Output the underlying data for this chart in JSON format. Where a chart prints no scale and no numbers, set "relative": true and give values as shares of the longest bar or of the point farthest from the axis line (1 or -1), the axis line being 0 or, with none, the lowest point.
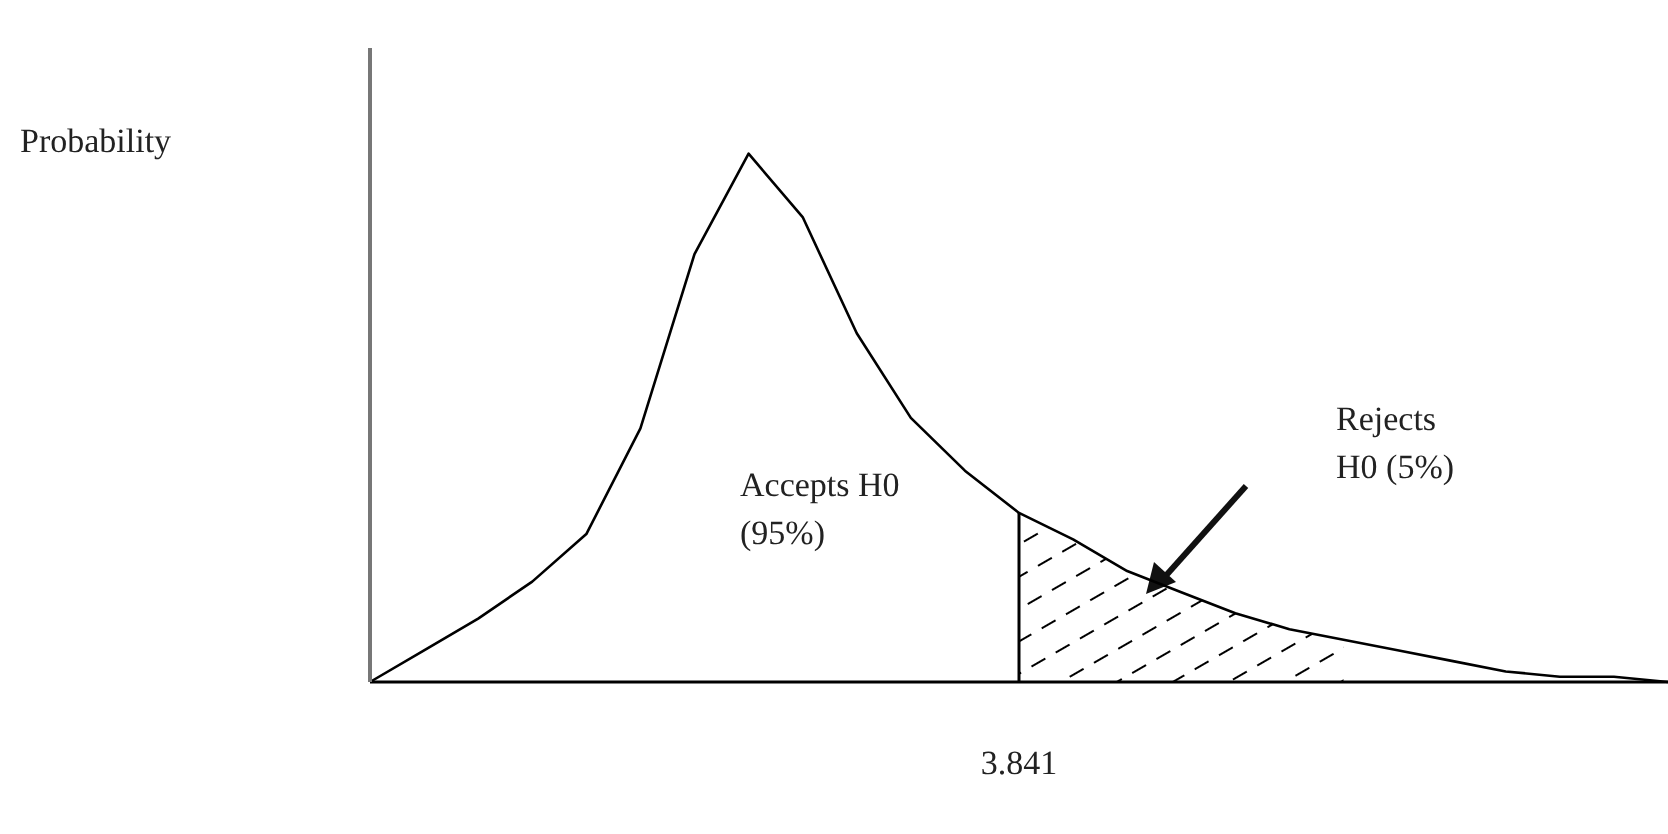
{
  "chart_data": {
    "type": "line",
    "relative": true,
    "categories": [
      null,
      null,
      null,
      null,
      null,
      null,
      null,
      null,
      null,
      null,
      null,
      null,
      null,
      null,
      null,
      null,
      null,
      null,
      null,
      null,
      null,
      null,
      null,
      null,
      null
    ],
    "series": [
      {
        "color": "#000000",
        "values": [
          0,
          0.06,
          0.12,
          0.19,
          0.28,
          0.48,
          0.81,
          1,
          0.88,
          0.66,
          0.5,
          0.4,
          0.32,
          0.27,
          0.21,
          0.17,
          0.13,
          0.1,
          0.08,
          0.06,
          0.04,
          0.02,
          0.01,
          0.01,
          0
        ]
      },
      {
        "type": "area",
        "color": "#000000",
        "values": [
          null,
          null,
          null,
          null,
          null,
          null,
          null,
          null,
          null,
          null,
          null,
          null,
          0.32,
          0.27,
          0.21,
          0.17,
          0.13,
          0.1,
          0.08,
          null,
          null,
          null,
          null,
          null,
          null
        ]
      }
    ],
    "annotations": [
      "Probability",
      "Accepts H0\n(95%)",
      "Rejects\nH0 (5%)",
      "3.841"
    ],
    "marker": "none",
    "line_style": "solid"
  }
}
